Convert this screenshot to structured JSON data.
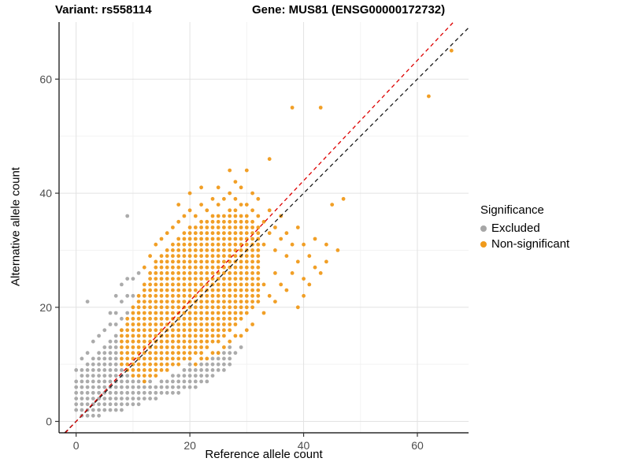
{
  "titles": {
    "left": "Variant: rs558114",
    "right": "Gene: MUS81 (ENSG00000172732)"
  },
  "axes": {
    "x": {
      "label": "Reference allele count",
      "ticks": [
        0,
        20,
        40,
        60
      ],
      "minor_ticks": [
        10,
        30,
        50
      ]
    },
    "y": {
      "label": "Alternative allele count",
      "ticks": [
        0,
        20,
        40,
        60
      ],
      "minor_ticks": [
        10,
        30,
        50
      ]
    }
  },
  "legend": {
    "title": "Significance",
    "items": [
      {
        "label": "Excluded",
        "color": "#A6A6A6"
      },
      {
        "label": "Non-significant",
        "color": "#F09A1A"
      }
    ]
  },
  "chart_data": {
    "type": "scatter",
    "title": "Variant: rs558114  /  Gene: MUS81 (ENSG00000172732)",
    "xlabel": "Reference allele count",
    "ylabel": "Alternative allele count",
    "xlim": [
      -3,
      69
    ],
    "ylim": [
      -2,
      70
    ],
    "grid": "on",
    "legend_position": "right",
    "series": [
      {
        "name": "Excluded",
        "color": "#A6A6A6",
        "runs": [
          [
            0,
            2,
            7
          ],
          [
            1,
            1,
            9
          ],
          [
            2,
            1,
            10
          ],
          [
            3,
            1,
            11
          ],
          [
            4,
            1,
            12
          ],
          [
            5,
            2,
            13
          ],
          [
            6,
            2,
            14
          ],
          [
            7,
            2,
            15
          ],
          [
            8,
            2,
            9
          ],
          [
            9,
            3,
            8
          ],
          [
            10,
            3,
            7
          ],
          [
            11,
            3,
            7
          ],
          [
            12,
            4,
            7
          ],
          [
            13,
            4,
            7
          ],
          [
            14,
            4,
            6
          ],
          [
            15,
            5,
            7
          ],
          [
            16,
            5,
            7
          ],
          [
            17,
            5,
            8
          ],
          [
            18,
            5,
            8
          ],
          [
            19,
            6,
            9
          ],
          [
            20,
            6,
            10
          ],
          [
            21,
            6,
            9
          ],
          [
            22,
            7,
            10
          ],
          [
            23,
            7,
            10
          ],
          [
            24,
            8,
            11
          ],
          [
            25,
            9,
            12
          ],
          [
            26,
            9,
            12
          ],
          [
            27,
            10,
            13
          ]
        ],
        "points": [
          [
            0,
            9
          ],
          [
            1,
            11
          ],
          [
            2,
            12
          ],
          [
            2,
            21
          ],
          [
            3,
            14
          ],
          [
            4,
            15
          ],
          [
            5,
            16
          ],
          [
            6,
            17
          ],
          [
            6,
            19
          ],
          [
            7,
            17
          ],
          [
            7,
            19
          ],
          [
            7,
            22
          ],
          [
            8,
            16
          ],
          [
            8,
            18
          ],
          [
            8,
            21
          ],
          [
            8,
            24
          ],
          [
            9,
            19
          ],
          [
            9,
            22
          ],
          [
            9,
            25
          ],
          [
            9,
            36
          ],
          [
            10,
            22
          ],
          [
            10,
            25
          ],
          [
            11,
            26
          ],
          [
            28,
            12
          ],
          [
            29,
            13
          ]
        ]
      },
      {
        "name": "Non-significant",
        "color": "#F09A1A",
        "runs": [
          [
            8,
            10,
            16
          ],
          [
            9,
            9,
            18
          ],
          [
            10,
            8,
            20
          ],
          [
            11,
            8,
            22
          ],
          [
            12,
            7,
            24
          ],
          [
            13,
            8,
            26
          ],
          [
            14,
            8,
            28
          ],
          [
            15,
            9,
            29
          ],
          [
            16,
            9,
            30
          ],
          [
            17,
            10,
            31
          ],
          [
            18,
            10,
            32
          ],
          [
            19,
            11,
            33
          ],
          [
            20,
            11,
            34
          ],
          [
            21,
            12,
            34
          ],
          [
            22,
            12,
            35
          ],
          [
            23,
            13,
            35
          ],
          [
            24,
            14,
            36
          ],
          [
            25,
            14,
            36
          ],
          [
            26,
            15,
            36
          ],
          [
            27,
            16,
            37
          ],
          [
            28,
            17,
            37
          ],
          [
            29,
            18,
            36
          ],
          [
            30,
            19,
            36
          ],
          [
            31,
            20,
            35
          ],
          [
            32,
            21,
            34
          ]
        ],
        "points": [
          [
            12,
            27
          ],
          [
            13,
            29
          ],
          [
            14,
            31
          ],
          [
            15,
            32
          ],
          [
            16,
            33
          ],
          [
            17,
            34
          ],
          [
            18,
            35
          ],
          [
            18,
            38
          ],
          [
            19,
            36
          ],
          [
            20,
            37
          ],
          [
            20,
            40
          ],
          [
            21,
            36
          ],
          [
            22,
            38
          ],
          [
            22,
            41
          ],
          [
            23,
            37
          ],
          [
            24,
            39
          ],
          [
            25,
            38
          ],
          [
            25,
            41
          ],
          [
            26,
            39
          ],
          [
            27,
            40
          ],
          [
            27,
            44
          ],
          [
            28,
            39
          ],
          [
            28,
            42
          ],
          [
            29,
            38
          ],
          [
            29,
            41
          ],
          [
            30,
            38
          ],
          [
            30,
            44
          ],
          [
            31,
            37
          ],
          [
            31,
            40
          ],
          [
            32,
            36
          ],
          [
            32,
            39
          ],
          [
            33,
            35
          ],
          [
            33,
            31
          ],
          [
            33,
            24
          ],
          [
            34,
            33
          ],
          [
            34,
            37
          ],
          [
            34,
            46
          ],
          [
            34,
            22
          ],
          [
            35,
            30
          ],
          [
            35,
            34
          ],
          [
            35,
            26
          ],
          [
            36,
            32
          ],
          [
            36,
            36
          ],
          [
            36,
            24
          ],
          [
            37,
            29
          ],
          [
            37,
            33
          ],
          [
            38,
            31
          ],
          [
            38,
            26
          ],
          [
            38,
            55
          ],
          [
            39,
            28
          ],
          [
            39,
            34
          ],
          [
            39,
            20
          ],
          [
            40,
            25
          ],
          [
            40,
            31
          ],
          [
            40,
            22
          ],
          [
            41,
            29
          ],
          [
            41,
            24
          ],
          [
            42,
            27
          ],
          [
            42,
            32
          ],
          [
            43,
            26
          ],
          [
            43,
            55
          ],
          [
            44,
            31
          ],
          [
            44,
            28
          ],
          [
            45,
            38
          ],
          [
            46,
            30
          ],
          [
            47,
            39
          ],
          [
            62,
            57
          ],
          [
            66,
            65
          ],
          [
            21,
            10
          ],
          [
            23,
            11
          ],
          [
            25,
            12
          ],
          [
            27,
            14
          ],
          [
            29,
            15
          ],
          [
            31,
            17
          ],
          [
            33,
            19
          ],
          [
            35,
            21
          ],
          [
            37,
            23
          ],
          [
            30,
            16
          ],
          [
            28,
            15
          ],
          [
            26,
            13
          ],
          [
            24,
            12
          ],
          [
            22,
            11
          ]
        ]
      }
    ],
    "lines": [
      {
        "name": "identity",
        "slope": 1,
        "intercept": 0,
        "color": "#1A1A1A",
        "dash": "5,4"
      },
      {
        "name": "fit",
        "slope": 1.055,
        "intercept": 0,
        "color": "#DD0000",
        "dash": "5,4"
      }
    ]
  }
}
